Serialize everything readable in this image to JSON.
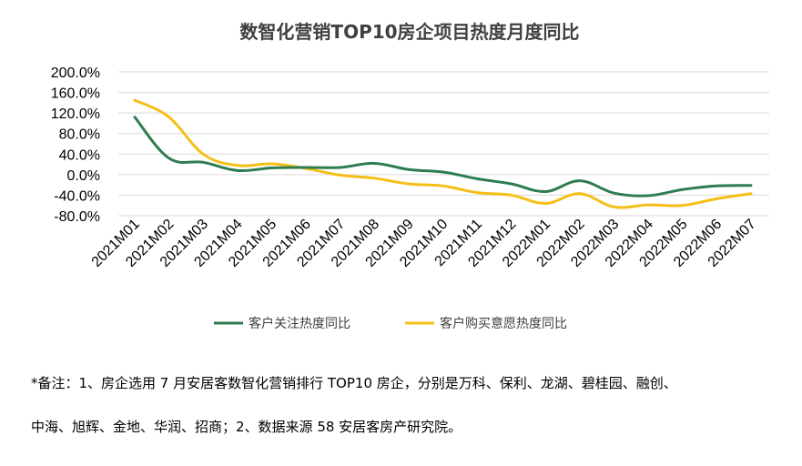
{
  "chart_data": {
    "type": "line",
    "title": "数智化营销TOP10房企项目热度月度同比",
    "categories": [
      "2021M01",
      "2021M02",
      "2021M03",
      "2021M04",
      "2021M05",
      "2021M06",
      "2021M07",
      "2021M08",
      "2021M09",
      "2021M10",
      "2021M11",
      "2021M12",
      "2022M01",
      "2022M02",
      "2022M03",
      "2022M04",
      "2022M05",
      "2022M06",
      "2022M07"
    ],
    "y_tick_labels": [
      "200.0%",
      "160.0%",
      "120.0%",
      "80.0%",
      "40.0%",
      "0.0%",
      "-40.0%",
      "-80.0%"
    ],
    "y_ticks": [
      200,
      160,
      120,
      80,
      40,
      0,
      -40,
      -80
    ],
    "ylim": [
      -80,
      200
    ],
    "grid": true,
    "legend_position": "bottom",
    "series": [
      {
        "name": "客户关注热度同比",
        "color": "#2e7d4f",
        "values": [
          112,
          32,
          24,
          8,
          13,
          14,
          14,
          22,
          10,
          5,
          -8,
          -18,
          -33,
          -12,
          -36,
          -41,
          -29,
          -22,
          -21
        ]
      },
      {
        "name": "客户购买意愿热度同比",
        "color": "#f5bf16",
        "values": [
          145,
          112,
          40,
          18,
          21,
          12,
          -1,
          -7,
          -18,
          -22,
          -35,
          -40,
          -56,
          -37,
          -63,
          -59,
          -60,
          -47,
          -37
        ]
      }
    ]
  },
  "note": {
    "line1": "*备注：1、房企选用 7 月安居客数智化营销排行 TOP10 房企，分别是万科、保利、龙湖、碧桂园、融创、",
    "line2": "中海、旭辉、金地、华润、招商；2、数据来源 58 安居客房产研究院。"
  }
}
